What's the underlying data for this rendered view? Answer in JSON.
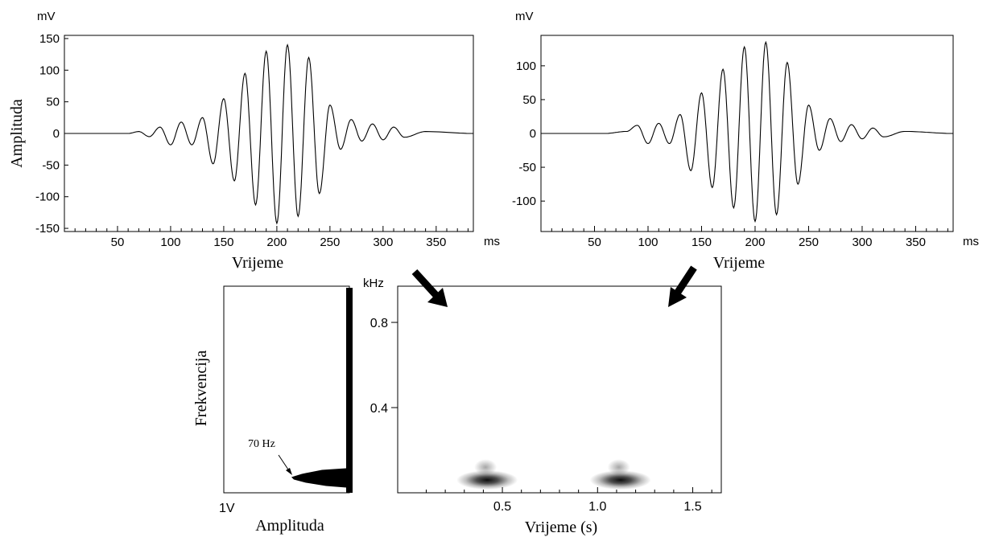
{
  "chart_data": [
    {
      "type": "line",
      "title": "",
      "xlabel": "Vrijeme",
      "ylabel": "Amplituda",
      "x_unit": "ms",
      "y_unit": "mV",
      "xlim": [
        0,
        385
      ],
      "ylim": [
        -155,
        155
      ],
      "xticks": [
        50,
        100,
        150,
        200,
        250,
        300,
        350
      ],
      "yticks": [
        150,
        100,
        50,
        0,
        -50,
        -100,
        -150
      ],
      "grid": false,
      "series": [
        {
          "x": [
            0,
            60,
            70,
            80,
            90,
            100,
            110,
            120,
            130,
            140,
            150,
            160,
            170,
            180,
            190,
            200,
            210,
            220,
            230,
            240,
            250,
            260,
            270,
            280,
            290,
            300,
            310,
            320,
            340,
            385
          ],
          "y": [
            0,
            0,
            3,
            -5,
            10,
            -18,
            18,
            -18,
            25,
            -48,
            55,
            -75,
            95,
            -113,
            130,
            -142,
            140,
            -131,
            120,
            -95,
            45,
            -25,
            22,
            -12,
            15,
            -10,
            10,
            -6,
            3,
            0
          ]
        }
      ]
    },
    {
      "type": "line",
      "title": "",
      "xlabel": "Vrijeme",
      "ylabel": "",
      "x_unit": "ms",
      "y_unit": "mV",
      "xlim": [
        0,
        385
      ],
      "ylim": [
        -145,
        145
      ],
      "xticks": [
        50,
        100,
        150,
        200,
        250,
        300,
        350
      ],
      "yticks": [
        100,
        50,
        0,
        -50,
        -100
      ],
      "grid": false,
      "series": [
        {
          "x": [
            0,
            60,
            80,
            90,
            100,
            110,
            120,
            130,
            140,
            150,
            160,
            170,
            180,
            190,
            200,
            210,
            220,
            230,
            240,
            250,
            260,
            270,
            280,
            290,
            300,
            310,
            320,
            340,
            385
          ],
          "y": [
            0,
            0,
            3,
            12,
            -15,
            15,
            -15,
            28,
            -55,
            60,
            -80,
            95,
            -110,
            128,
            -130,
            135,
            -120,
            105,
            -75,
            42,
            -25,
            22,
            -12,
            13,
            -8,
            8,
            -5,
            3,
            0
          ]
        }
      ]
    },
    {
      "type": "area",
      "title": "",
      "xlabel": "Amplituda",
      "ylabel": "Frekvencija",
      "x_tick_label": "1V",
      "annotation": "70 Hz",
      "peak_frequency_khz": 0.07,
      "ylim": [
        0,
        0.97
      ]
    },
    {
      "type": "heatmap",
      "title": "",
      "xlabel": "Vrijeme (s)",
      "ylabel": "",
      "y_unit": "kHz",
      "xlim": [
        -0.05,
        1.65
      ],
      "ylim": [
        0,
        0.97
      ],
      "xticks": [
        0.5,
        1.0,
        1.5
      ],
      "yticks": [
        0.8,
        0.4
      ],
      "blobs": [
        {
          "t": 0.42,
          "f": 0.06,
          "f_top": 0.12
        },
        {
          "t": 1.12,
          "f": 0.06,
          "f_top": 0.12
        }
      ]
    }
  ]
}
